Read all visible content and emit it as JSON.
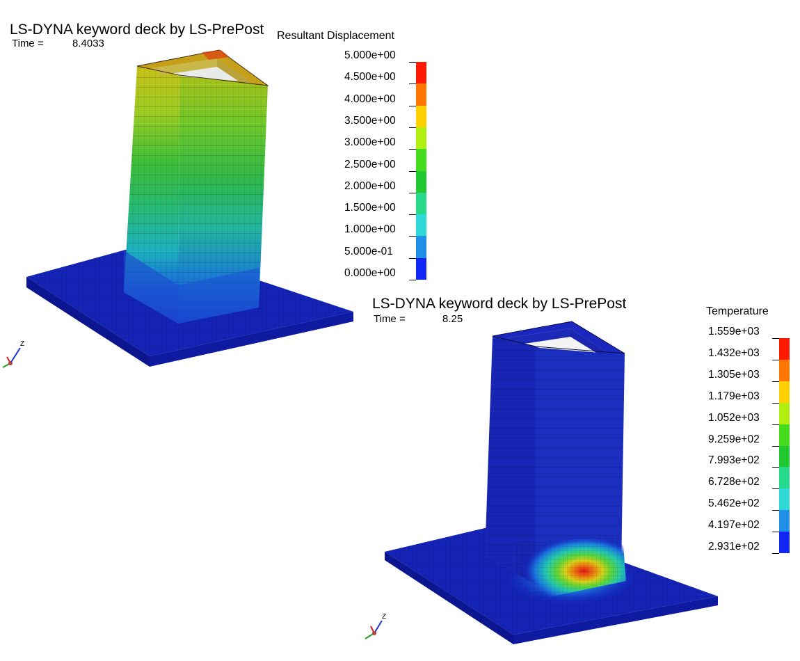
{
  "view1": {
    "title": "LS-DYNA keyword deck by LS-PrePost",
    "time_label": "Time =",
    "time_value": "8.4033",
    "legend": {
      "title": "Resultant Displacement",
      "ticks": [
        "5.000e+00",
        "4.500e+00",
        "4.000e+00",
        "3.500e+00",
        "3.000e+00",
        "2.500e+00",
        "2.000e+00",
        "1.500e+00",
        "1.000e+00",
        "5.000e-01",
        "0.000e+00"
      ],
      "colors": [
        "#ff1a00",
        "#ff7700",
        "#ffd000",
        "#b0ef10",
        "#45dc1e",
        "#22c830",
        "#27d98a",
        "#2fd9d8",
        "#1f8fe8",
        "#1026f5"
      ]
    }
  },
  "view2": {
    "title": "LS-DYNA keyword deck by LS-PrePost",
    "time_label": "Time =",
    "time_value": "8.25",
    "legend": {
      "title": "Temperature",
      "ticks": [
        "1.559e+03",
        "1.432e+03",
        "1.305e+03",
        "1.179e+03",
        "1.052e+03",
        "9.259e+02",
        "7.993e+02",
        "6.728e+02",
        "5.462e+02",
        "4.197e+02",
        "2.931e+02"
      ],
      "colors": [
        "#ff1a00",
        "#ff7700",
        "#ffd000",
        "#b0ef10",
        "#45dc1e",
        "#22c830",
        "#27d98a",
        "#2fd9d8",
        "#1f8fe8",
        "#1026f5"
      ]
    }
  },
  "triad": {
    "axis_label": "Z"
  }
}
